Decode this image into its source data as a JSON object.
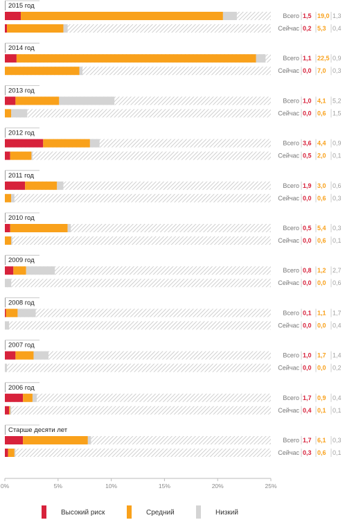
{
  "chart_data": {
    "type": "bar",
    "orientation": "horizontal",
    "stacked": true,
    "unit": "%",
    "xlim": [
      0,
      25
    ],
    "ticks": [
      "0%",
      "5%",
      "10%",
      "15%",
      "20%",
      "25%"
    ],
    "row_labels": [
      "Всего",
      "Сейчас"
    ],
    "series": [
      {
        "name": "Высокий риск",
        "color": "#d7223b"
      },
      {
        "name": "Средний",
        "color": "#f9a11b"
      },
      {
        "name": "Низкий",
        "color": "#d4d4d4"
      }
    ],
    "groups": [
      {
        "label": "2015 год",
        "rows": [
          {
            "values": [
              1.5,
              19.0,
              1.3
            ],
            "labels": [
              "1,5",
              "19,0",
              "1,3"
            ]
          },
          {
            "values": [
              0.2,
              5.3,
              0.4
            ],
            "labels": [
              "0,2",
              "5,3",
              "0,4"
            ]
          }
        ]
      },
      {
        "label": "2014 год",
        "rows": [
          {
            "values": [
              1.1,
              22.5,
              0.9
            ],
            "labels": [
              "1,1",
              "22,5",
              "0,9"
            ]
          },
          {
            "values": [
              0.0,
              7.0,
              0.3
            ],
            "labels": [
              "0,0",
              "7,0",
              "0,3"
            ]
          }
        ]
      },
      {
        "label": "2013 год",
        "rows": [
          {
            "values": [
              1.0,
              4.1,
              5.2
            ],
            "labels": [
              "1,0",
              "4,1",
              "5,2"
            ]
          },
          {
            "values": [
              0.0,
              0.6,
              1.5
            ],
            "labels": [
              "0,0",
              "0,6",
              "1,5"
            ]
          }
        ]
      },
      {
        "label": "2012 год",
        "rows": [
          {
            "values": [
              3.6,
              4.4,
              0.9
            ],
            "labels": [
              "3,6",
              "4,4",
              "0,9"
            ]
          },
          {
            "values": [
              0.5,
              2.0,
              0.1
            ],
            "labels": [
              "0,5",
              "2,0",
              "0,1"
            ]
          }
        ]
      },
      {
        "label": "2011 год",
        "rows": [
          {
            "values": [
              1.9,
              3.0,
              0.6
            ],
            "labels": [
              "1,9",
              "3,0",
              "0,6"
            ]
          },
          {
            "values": [
              0.0,
              0.6,
              0.3
            ],
            "labels": [
              "0,0",
              "0,6",
              "0,3"
            ]
          }
        ]
      },
      {
        "label": "2010 год",
        "rows": [
          {
            "values": [
              0.5,
              5.4,
              0.3
            ],
            "labels": [
              "0,5",
              "5,4",
              "0,3"
            ]
          },
          {
            "values": [
              0.0,
              0.6,
              0.1
            ],
            "labels": [
              "0,0",
              "0,6",
              "0,1"
            ]
          }
        ]
      },
      {
        "label": "2009 год",
        "rows": [
          {
            "values": [
              0.8,
              1.2,
              2.7
            ],
            "labels": [
              "0,8",
              "1,2",
              "2,7"
            ]
          },
          {
            "values": [
              0.0,
              0.0,
              0.6
            ],
            "labels": [
              "0,0",
              "0,0",
              "0,6"
            ]
          }
        ]
      },
      {
        "label": "2008 год",
        "rows": [
          {
            "values": [
              0.1,
              1.1,
              1.7
            ],
            "labels": [
              "0,1",
              "1,1",
              "1,7"
            ]
          },
          {
            "values": [
              0.0,
              0.0,
              0.4
            ],
            "labels": [
              "0,0",
              "0,0",
              "0,4"
            ]
          }
        ]
      },
      {
        "label": "2007 год",
        "rows": [
          {
            "values": [
              1.0,
              1.7,
              1.4
            ],
            "labels": [
              "1,0",
              "1,7",
              "1,4"
            ]
          },
          {
            "values": [
              0.0,
              0.0,
              0.2
            ],
            "labels": [
              "0,0",
              "0,0",
              "0,2"
            ]
          }
        ]
      },
      {
        "label": "2006 год",
        "rows": [
          {
            "values": [
              1.7,
              0.9,
              0.4
            ],
            "labels": [
              "1,7",
              "0,9",
              "0,4"
            ]
          },
          {
            "values": [
              0.4,
              0.1,
              0.1
            ],
            "labels": [
              "0,4",
              "0,1",
              "0,1"
            ]
          }
        ]
      },
      {
        "label": "Старше десяти лет",
        "rows": [
          {
            "values": [
              1.7,
              6.1,
              0.3
            ],
            "labels": [
              "1,7",
              "6,1",
              "0,3"
            ]
          },
          {
            "values": [
              0.3,
              0.6,
              0.1
            ],
            "labels": [
              "0,3",
              "0,6",
              "0,1"
            ]
          }
        ]
      }
    ],
    "remainder_fill": "hatched",
    "grid": false,
    "legend_position": "bottom"
  }
}
